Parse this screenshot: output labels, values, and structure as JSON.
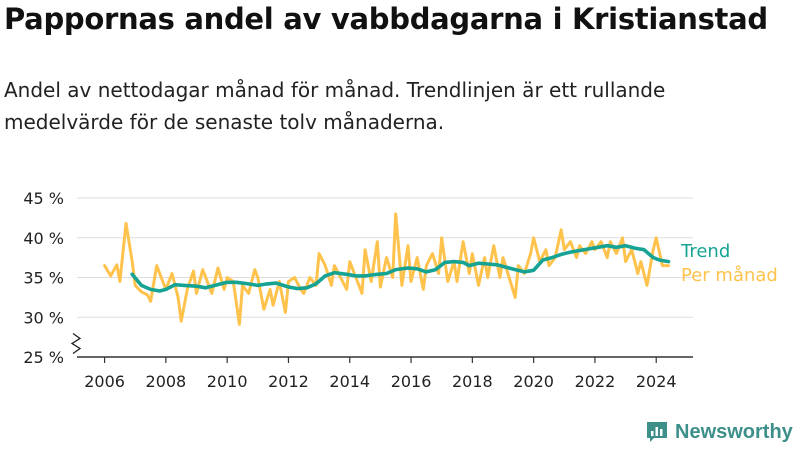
{
  "title": "Pappornas andel av vabbdagarna i Kristianstad",
  "subtitle": "Andel av nettodagar månad för månad. Trendlinjen är ett rullande medelvärde för de senaste tolv månaderna.",
  "brand": "Newsworthy",
  "colors": {
    "monthly": "#ffc34d",
    "trend": "#16a394",
    "axis": "#333333",
    "grid": "#dddddd",
    "brand": "#3d8f8a"
  },
  "chart_data": {
    "type": "line",
    "x_ticks": [
      "2006",
      "2008",
      "2010",
      "2012",
      "2014",
      "2016",
      "2018",
      "2020",
      "2022",
      "2024"
    ],
    "y_ticks": [
      "25 %",
      "30 %",
      "35 %",
      "40 %",
      "45 %"
    ],
    "ylim": [
      25,
      45
    ],
    "xlim": [
      2005.1,
      2025.2
    ],
    "grid": true,
    "axis_break": true,
    "series": [
      {
        "name": "Per månad",
        "color": "#ffc34d",
        "points": [
          [
            2006.0,
            36.5
          ],
          [
            2006.2,
            35.2
          ],
          [
            2006.4,
            36.6
          ],
          [
            2006.5,
            34.5
          ],
          [
            2006.7,
            41.8
          ],
          [
            2006.9,
            37.0
          ],
          [
            2007.0,
            34.0
          ],
          [
            2007.2,
            33.2
          ],
          [
            2007.4,
            32.8
          ],
          [
            2007.5,
            32.0
          ],
          [
            2007.7,
            36.5
          ],
          [
            2007.9,
            34.5
          ],
          [
            2008.0,
            33.5
          ],
          [
            2008.2,
            35.5
          ],
          [
            2008.4,
            32.5
          ],
          [
            2008.5,
            29.5
          ],
          [
            2008.7,
            33.5
          ],
          [
            2008.9,
            35.8
          ],
          [
            2009.0,
            33.0
          ],
          [
            2009.2,
            36.0
          ],
          [
            2009.4,
            34.0
          ],
          [
            2009.5,
            33.0
          ],
          [
            2009.7,
            36.2
          ],
          [
            2009.9,
            33.5
          ],
          [
            2010.0,
            35.0
          ],
          [
            2010.2,
            34.5
          ],
          [
            2010.4,
            29.1
          ],
          [
            2010.5,
            34.0
          ],
          [
            2010.7,
            33.0
          ],
          [
            2010.9,
            36.0
          ],
          [
            2011.0,
            35.0
          ],
          [
            2011.2,
            31.0
          ],
          [
            2011.4,
            33.5
          ],
          [
            2011.5,
            31.5
          ],
          [
            2011.7,
            34.5
          ],
          [
            2011.9,
            30.6
          ],
          [
            2012.0,
            34.5
          ],
          [
            2012.2,
            35.0
          ],
          [
            2012.4,
            33.5
          ],
          [
            2012.5,
            33.0
          ],
          [
            2012.7,
            35.0
          ],
          [
            2012.9,
            34.0
          ],
          [
            2013.0,
            38.0
          ],
          [
            2013.2,
            36.5
          ],
          [
            2013.4,
            34.0
          ],
          [
            2013.5,
            36.5
          ],
          [
            2013.7,
            35.0
          ],
          [
            2013.9,
            33.5
          ],
          [
            2014.0,
            37.0
          ],
          [
            2014.2,
            35.0
          ],
          [
            2014.4,
            33.0
          ],
          [
            2014.5,
            38.5
          ],
          [
            2014.7,
            34.5
          ],
          [
            2014.9,
            39.5
          ],
          [
            2015.0,
            33.8
          ],
          [
            2015.2,
            37.5
          ],
          [
            2015.4,
            35.0
          ],
          [
            2015.5,
            43.0
          ],
          [
            2015.7,
            34.0
          ],
          [
            2015.9,
            39.0
          ],
          [
            2016.0,
            34.5
          ],
          [
            2016.2,
            37.5
          ],
          [
            2016.4,
            33.5
          ],
          [
            2016.5,
            36.5
          ],
          [
            2016.7,
            38.0
          ],
          [
            2016.9,
            35.5
          ],
          [
            2017.0,
            40.0
          ],
          [
            2017.2,
            34.5
          ],
          [
            2017.4,
            37.0
          ],
          [
            2017.5,
            34.5
          ],
          [
            2017.7,
            39.5
          ],
          [
            2017.9,
            35.5
          ],
          [
            2018.0,
            38.0
          ],
          [
            2018.2,
            34.0
          ],
          [
            2018.4,
            37.5
          ],
          [
            2018.5,
            35.0
          ],
          [
            2018.7,
            39.0
          ],
          [
            2018.9,
            35.0
          ],
          [
            2019.0,
            37.5
          ],
          [
            2019.2,
            35.0
          ],
          [
            2019.4,
            32.5
          ],
          [
            2019.5,
            36.5
          ],
          [
            2019.7,
            35.5
          ],
          [
            2019.9,
            38.0
          ],
          [
            2020.0,
            40.0
          ],
          [
            2020.2,
            37.0
          ],
          [
            2020.4,
            38.5
          ],
          [
            2020.5,
            36.5
          ],
          [
            2020.7,
            37.5
          ],
          [
            2020.9,
            41.0
          ],
          [
            2021.0,
            38.5
          ],
          [
            2021.2,
            39.5
          ],
          [
            2021.4,
            37.5
          ],
          [
            2021.5,
            39.0
          ],
          [
            2021.7,
            38.0
          ],
          [
            2021.9,
            39.5
          ],
          [
            2022.0,
            38.5
          ],
          [
            2022.2,
            39.5
          ],
          [
            2022.4,
            37.5
          ],
          [
            2022.5,
            39.5
          ],
          [
            2022.7,
            38.0
          ],
          [
            2022.9,
            40.0
          ],
          [
            2023.0,
            37.0
          ],
          [
            2023.2,
            38.5
          ],
          [
            2023.4,
            35.5
          ],
          [
            2023.5,
            37.0
          ],
          [
            2023.7,
            34.0
          ],
          [
            2023.9,
            38.5
          ],
          [
            2024.0,
            40.0
          ],
          [
            2024.2,
            36.5
          ],
          [
            2024.4,
            36.5
          ]
        ]
      },
      {
        "name": "Trend",
        "color": "#16a394",
        "points": [
          [
            2006.9,
            35.4
          ],
          [
            2007.2,
            34.0
          ],
          [
            2007.5,
            33.5
          ],
          [
            2007.8,
            33.3
          ],
          [
            2008.0,
            33.5
          ],
          [
            2008.3,
            34.1
          ],
          [
            2008.6,
            34.0
          ],
          [
            2009.0,
            33.9
          ],
          [
            2009.3,
            33.7
          ],
          [
            2009.6,
            34.0
          ],
          [
            2010.0,
            34.4
          ],
          [
            2010.3,
            34.4
          ],
          [
            2010.7,
            34.2
          ],
          [
            2011.0,
            34.0
          ],
          [
            2011.3,
            34.2
          ],
          [
            2011.6,
            34.3
          ],
          [
            2012.0,
            33.8
          ],
          [
            2012.3,
            33.6
          ],
          [
            2012.6,
            33.7
          ],
          [
            2012.9,
            34.2
          ],
          [
            2013.2,
            35.2
          ],
          [
            2013.5,
            35.6
          ],
          [
            2013.9,
            35.4
          ],
          [
            2014.2,
            35.2
          ],
          [
            2014.5,
            35.2
          ],
          [
            2014.9,
            35.4
          ],
          [
            2015.2,
            35.5
          ],
          [
            2015.5,
            36.0
          ],
          [
            2015.9,
            36.2
          ],
          [
            2016.2,
            36.1
          ],
          [
            2016.5,
            35.7
          ],
          [
            2016.8,
            36.0
          ],
          [
            2017.1,
            36.9
          ],
          [
            2017.4,
            37.0
          ],
          [
            2017.7,
            36.9
          ],
          [
            2017.9,
            36.5
          ],
          [
            2018.2,
            36.8
          ],
          [
            2018.5,
            36.7
          ],
          [
            2018.8,
            36.6
          ],
          [
            2019.1,
            36.3
          ],
          [
            2019.4,
            36.0
          ],
          [
            2019.7,
            35.7
          ],
          [
            2020.0,
            35.9
          ],
          [
            2020.3,
            37.2
          ],
          [
            2020.6,
            37.5
          ],
          [
            2020.9,
            37.9
          ],
          [
            2021.2,
            38.2
          ],
          [
            2021.5,
            38.4
          ],
          [
            2021.8,
            38.6
          ],
          [
            2022.1,
            38.8
          ],
          [
            2022.4,
            39.0
          ],
          [
            2022.7,
            38.8
          ],
          [
            2023.0,
            39.0
          ],
          [
            2023.3,
            38.7
          ],
          [
            2023.6,
            38.5
          ],
          [
            2023.9,
            37.5
          ],
          [
            2024.1,
            37.2
          ],
          [
            2024.4,
            37.0
          ]
        ]
      }
    ]
  }
}
